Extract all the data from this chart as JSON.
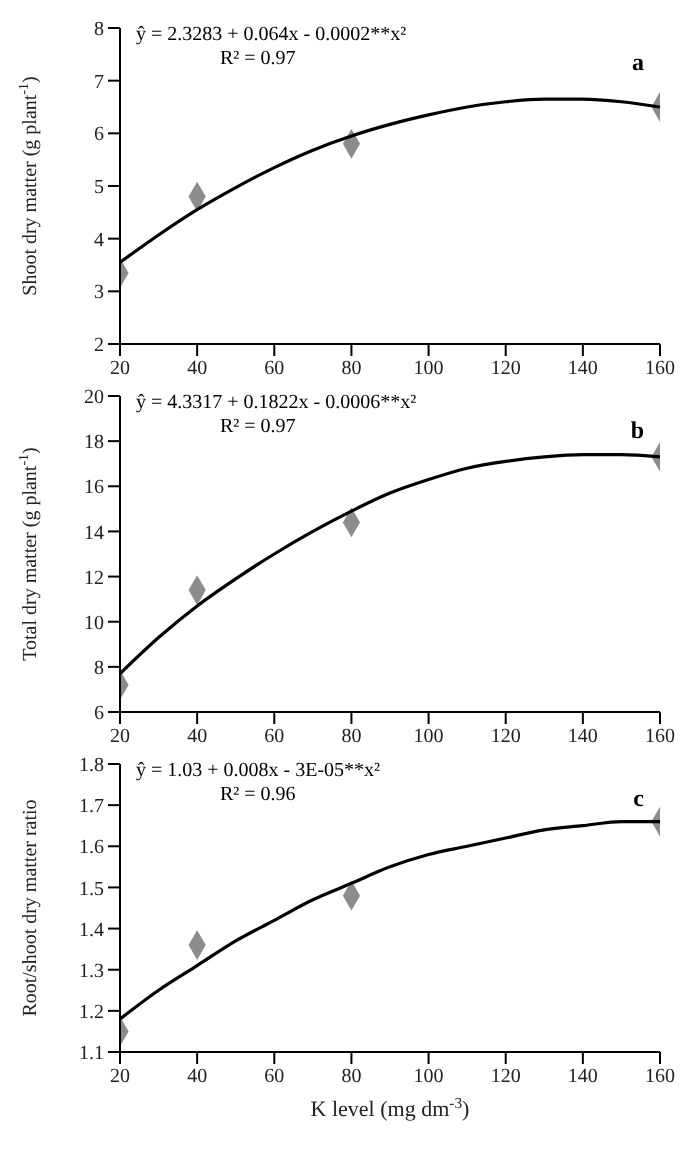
{
  "chart_data": [
    {
      "type": "scatter",
      "ylabel": "Shoot dry matter (g plant$^{-1}$)",
      "annotations": [
        "ŷ = 2.3283 + 0.064x - 0.0002**x²",
        "R² = 0.97",
        "a"
      ],
      "xlim": [
        20,
        160
      ],
      "xticks": [
        20,
        40,
        60,
        80,
        100,
        120,
        140,
        160
      ],
      "ylim": [
        2,
        8
      ],
      "yticks": [
        2,
        3,
        4,
        5,
        6,
        7,
        8
      ],
      "grid": false,
      "legend": false,
      "series": [
        {
          "type": "scatter",
          "color": "#8c8c8c",
          "marker": "diamond",
          "x": [
            20,
            40,
            80,
            160
          ],
          "values": [
            3.35,
            4.8,
            5.8,
            6.5
          ]
        },
        {
          "type": "line",
          "color": "#000000",
          "marker": "none",
          "x": [
            20,
            30,
            40,
            50,
            60,
            70,
            80,
            90,
            100,
            110,
            120,
            130,
            140,
            150,
            160
          ],
          "values": [
            3.55,
            4.07,
            4.55,
            4.97,
            5.35,
            5.68,
            5.95,
            6.17,
            6.35,
            6.5,
            6.6,
            6.65,
            6.65,
            6.6,
            6.5
          ]
        }
      ]
    },
    {
      "type": "scatter",
      "ylabel": "Total dry matter (g plant$^{-1}$)",
      "annotations": [
        "ŷ = 4.3317 + 0.1822x - 0.0006**x²",
        "R² = 0.97",
        "b"
      ],
      "xlim": [
        20,
        160
      ],
      "xticks": [
        20,
        40,
        60,
        80,
        100,
        120,
        140,
        160
      ],
      "ylim": [
        6,
        20
      ],
      "yticks": [
        6,
        8,
        10,
        12,
        14,
        16,
        18,
        20
      ],
      "grid": false,
      "legend": false,
      "series": [
        {
          "type": "scatter",
          "color": "#8c8c8c",
          "marker": "diamond",
          "x": [
            20,
            40,
            80,
            160
          ],
          "values": [
            7.2,
            11.4,
            14.4,
            17.3
          ]
        },
        {
          "type": "line",
          "color": "#000000",
          "marker": "none",
          "x": [
            20,
            30,
            40,
            50,
            60,
            70,
            80,
            90,
            100,
            110,
            120,
            130,
            140,
            150,
            160
          ],
          "values": [
            7.7,
            9.3,
            10.7,
            11.9,
            13.0,
            14.0,
            14.9,
            15.7,
            16.3,
            16.8,
            17.1,
            17.3,
            17.4,
            17.4,
            17.3
          ]
        }
      ]
    },
    {
      "type": "scatter",
      "xlabel": "K level (mg dm$^{-3}$)",
      "ylabel": "Root/shoot dry matter ratio",
      "annotations": [
        "ŷ = 1.03 + 0.008x - 3E-05**x²",
        "R² = 0.96",
        "c"
      ],
      "xlim": [
        20,
        160
      ],
      "xticks": [
        20,
        40,
        60,
        80,
        100,
        120,
        140,
        160
      ],
      "ylim": [
        1.1,
        1.8
      ],
      "yticks": [
        1.1,
        1.2,
        1.3,
        1.4,
        1.5,
        1.6,
        1.7,
        1.8
      ],
      "grid": false,
      "legend": false,
      "series": [
        {
          "type": "scatter",
          "color": "#8c8c8c",
          "marker": "diamond",
          "x": [
            20,
            40,
            80,
            160
          ],
          "values": [
            1.15,
            1.36,
            1.48,
            1.66
          ]
        },
        {
          "type": "line",
          "color": "#000000",
          "marker": "none",
          "x": [
            20,
            30,
            40,
            50,
            60,
            70,
            80,
            90,
            100,
            110,
            120,
            130,
            140,
            150,
            160
          ],
          "values": [
            1.18,
            1.25,
            1.31,
            1.37,
            1.42,
            1.47,
            1.51,
            1.55,
            1.58,
            1.6,
            1.62,
            1.64,
            1.65,
            1.66,
            1.66
          ]
        }
      ]
    }
  ]
}
